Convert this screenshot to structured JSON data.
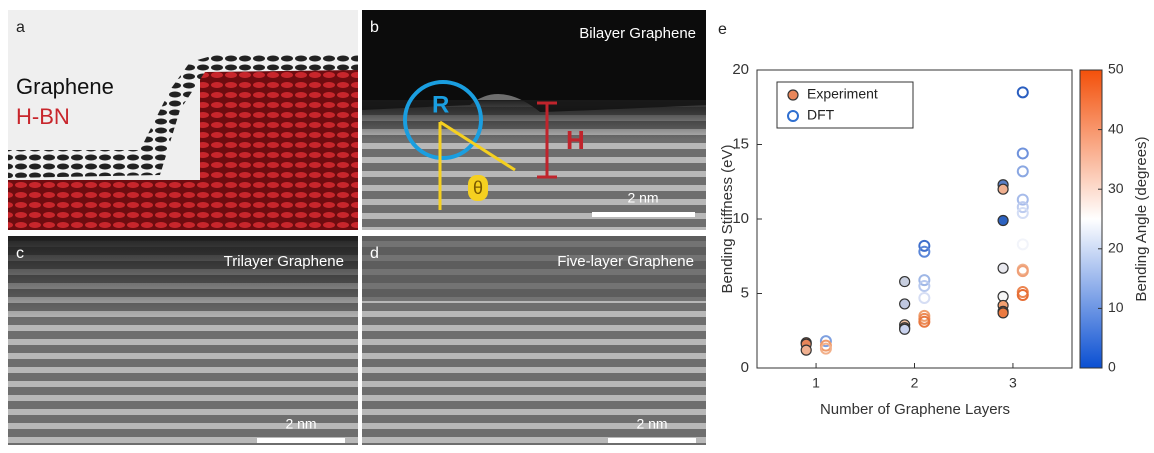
{
  "panels": {
    "a": {
      "label": "a",
      "graphene": "Graphene",
      "hbn": "H-BN"
    },
    "b": {
      "label": "b",
      "title": "Bilayer Graphene",
      "radius": "R",
      "height": "H",
      "angle": "θ",
      "scale": "2 nm"
    },
    "c": {
      "label": "c",
      "title": "Trilayer Graphene",
      "scale": "2 nm"
    },
    "d": {
      "label": "d",
      "title": "Five-layer Graphene",
      "scale": "2 nm"
    }
  },
  "chart_data": {
    "type": "scatter",
    "label": "e",
    "xlabel": "Number of Graphene Layers",
    "ylabel": "Bending Stiffness (eV)",
    "xlim": [
      0.4,
      3.6
    ],
    "xticks": [
      1,
      2,
      3
    ],
    "ylim": [
      0,
      20
    ],
    "yticks": [
      0,
      5,
      10,
      15,
      20
    ],
    "legend": "top-left",
    "colorbar": {
      "label": "Bending Angle (degrees)",
      "lim": [
        0,
        50
      ],
      "ticks": [
        0,
        10,
        20,
        30,
        40,
        50
      ],
      "colors": [
        "#0a4fd2",
        "#ffffff",
        "#f3500a"
      ]
    },
    "series": [
      {
        "name": "Experiment",
        "filled": true,
        "edge": "#333333",
        "x": [
          0.9,
          0.9,
          0.9,
          1.9,
          1.9,
          1.9,
          1.9,
          1.9,
          2.9,
          2.9,
          2.9,
          2.9,
          2.9,
          2.9,
          2.9,
          2.9
        ],
        "values": [
          1.7,
          1.6,
          1.2,
          5.8,
          4.3,
          2.9,
          2.7,
          2.6,
          12.3,
          12.0,
          9.9,
          6.7,
          4.8,
          4.2,
          3.8,
          3.7
        ],
        "colors": [
          "#e2703a",
          "#e8865a",
          "#f0b090",
          "#c8cfe0",
          "#c0c8e0",
          "#f2c0a0",
          "#e8a080",
          "#c9d2ee",
          "#5a7fc6",
          "#f0b090",
          "#2c62c0",
          "#e8e8ee",
          "#f6f6f6",
          "#f3a070",
          "#e56a30",
          "#eb7a40"
        ]
      },
      {
        "name": "DFT",
        "filled": false,
        "edge": "#2f6fd0",
        "x": [
          1.1,
          1.1,
          1.1,
          2.1,
          2.1,
          2.1,
          2.1,
          2.1,
          2.1,
          2.1,
          2.1,
          3.1,
          3.1,
          3.1,
          3.1,
          3.1,
          3.1,
          3.1,
          3.1,
          3.1,
          3.1,
          3.1
        ],
        "values": [
          1.8,
          1.5,
          1.3,
          8.2,
          7.8,
          5.9,
          5.5,
          4.7,
          3.5,
          3.3,
          3.1,
          18.5,
          14.4,
          13.2,
          11.3,
          10.8,
          10.4,
          8.3,
          6.6,
          6.5,
          5.1,
          4.9
        ],
        "colors": [
          "#7ea0e0",
          "#ef9a6a",
          "#f2b08a",
          "#3f6fcc",
          "#5a86d8",
          "#9fb7e6",
          "#b8c9ee",
          "#d6def4",
          "#f0a070",
          "#ec8a55",
          "#e87840",
          "#2a5ec0",
          "#6f92dc",
          "#8aa7e2",
          "#a6bbea",
          "#bccbef",
          "#d3ddf5",
          "#f2f4fa",
          "#f2b08a",
          "#efa078",
          "#ec8550",
          "#e66e35"
        ]
      }
    ]
  }
}
